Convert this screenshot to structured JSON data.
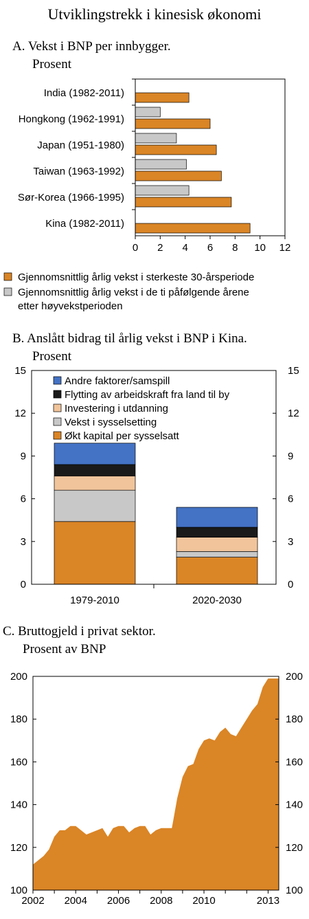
{
  "figure": {
    "title": "Utviklingstrekk i kinesisk økonomi"
  },
  "colors": {
    "orange": "#DA8526",
    "gray": "#C8C8C8",
    "blue": "#4472C4",
    "black": "#1A1A1A",
    "peach": "#F1C49B",
    "border": "#000000"
  },
  "panels": {
    "a": {
      "title_line1": "A.  Vekst i BNP per innbygger.",
      "title_line2": "Prosent"
    },
    "b": {
      "title_line1": "B.  Anslått bidrag til årlig vekst i BNP i Kina.",
      "title_line2": "Prosent"
    },
    "c": {
      "title_line1": "C.  Bruttogjeld i privat sektor.",
      "title_line2": "Prosent av BNP"
    }
  },
  "chart_data": [
    {
      "type": "bar",
      "orientation": "horizontal",
      "categories": [
        "India (1982-2011)",
        "Hongkong (1962-1991)",
        "Japan (1951-1980)",
        "Taiwan (1963-1992)",
        "Sør-Korea (1966-1995)",
        "Kina (1982-2011)"
      ],
      "series": [
        {
          "name": "Gjennomsnittlig årlig vekst i sterkeste 30-årsperiode",
          "values": [
            4.3,
            6.0,
            6.5,
            6.9,
            7.7,
            9.2
          ]
        },
        {
          "name": "Gjennomsnittlig årlig vekst i de ti påfølgende årene etter høyvekstperioden",
          "values": [
            null,
            2.0,
            3.3,
            4.1,
            4.3,
            null
          ]
        }
      ],
      "xlim": [
        0,
        12
      ],
      "xticks": [
        "0",
        "2",
        "4",
        "6",
        "8",
        "10",
        "12"
      ],
      "legend": "bottom"
    },
    {
      "type": "bar",
      "stacked": true,
      "categories": [
        "1979-2010",
        "2020-2030"
      ],
      "series": [
        {
          "name": "Økt kapital per sysselsatt",
          "values": [
            4.4,
            1.9
          ]
        },
        {
          "name": "Vekst i sysselsetting",
          "values": [
            2.2,
            0.4
          ]
        },
        {
          "name": "Investering i utdanning",
          "values": [
            1.0,
            1.0
          ]
        },
        {
          "name": "Flytting av arbeidskraft fra land til by",
          "values": [
            0.8,
            0.7
          ]
        },
        {
          "name": "Andre faktorer/samspill",
          "values": [
            1.5,
            1.4
          ]
        }
      ],
      "ylim": [
        0,
        15
      ],
      "yticks": [
        "0",
        "3",
        "6",
        "9",
        "12",
        "15"
      ],
      "legend": "top-left"
    },
    {
      "type": "area",
      "x": [
        2002.0,
        2002.25,
        2002.5,
        2002.75,
        2003.0,
        2003.25,
        2003.5,
        2003.75,
        2004.0,
        2004.25,
        2004.5,
        2004.75,
        2005.0,
        2005.25,
        2005.5,
        2005.75,
        2006.0,
        2006.25,
        2006.5,
        2006.75,
        2007.0,
        2007.25,
        2007.5,
        2007.75,
        2008.0,
        2008.25,
        2008.5,
        2008.75,
        2009.0,
        2009.25,
        2009.5,
        2009.75,
        2010.0,
        2010.25,
        2010.5,
        2010.75,
        2011.0,
        2011.25,
        2011.5,
        2011.75,
        2012.0,
        2012.25,
        2012.5,
        2012.75,
        2013.0,
        2013.25,
        2013.5
      ],
      "values": [
        112,
        114,
        116,
        119,
        125,
        128,
        128,
        130,
        130,
        128,
        126,
        127,
        128,
        129,
        125,
        129,
        130,
        130,
        127,
        129,
        130,
        130,
        126,
        128,
        129,
        129,
        129,
        143,
        153,
        158,
        159,
        166,
        170,
        171,
        170,
        174,
        176,
        173,
        172,
        176,
        180,
        184,
        187,
        195,
        199,
        199,
        199
      ],
      "xticks": [
        "2002",
        "2004",
        "2006",
        "2008",
        "2010",
        "2013"
      ],
      "ylim": [
        100,
        200
      ],
      "yticks": [
        "100",
        "120",
        "140",
        "160",
        "180",
        "200"
      ]
    }
  ]
}
